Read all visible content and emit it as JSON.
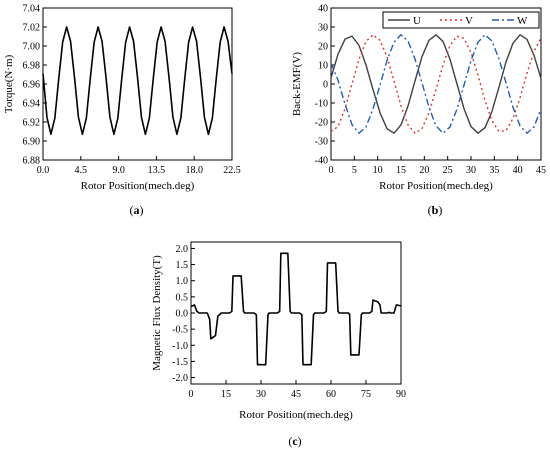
{
  "chart_data": [
    {
      "type": "line",
      "panel_label": "a",
      "xlabel": "Rotor Position(mech.deg)",
      "ylabel": "Torque(N·m)",
      "xlim": [
        0,
        22.5
      ],
      "ylim": [
        6.88,
        7.04
      ],
      "xticks": [
        "0.0",
        "4.5",
        "9.0",
        "13.5",
        "18.0",
        "22.5"
      ],
      "yticks": [
        "6.88",
        "6.90",
        "6.92",
        "6.94",
        "6.96",
        "6.98",
        "7.00",
        "7.02",
        "7.04"
      ],
      "grid": false,
      "series": [
        {
          "color": "#000000",
          "style": "solid",
          "x": [
            0.0,
            0.47,
            0.94,
            1.41,
            1.88,
            2.34,
            2.81,
            3.28,
            3.75,
            4.22,
            4.69,
            5.16,
            5.63,
            6.09,
            6.56,
            7.03,
            7.5,
            7.97,
            8.44,
            8.91,
            9.38,
            9.84,
            10.31,
            10.78,
            11.25,
            11.72,
            12.19,
            12.66,
            13.13,
            13.59,
            14.06,
            14.53,
            15.0,
            15.47,
            15.94,
            16.41,
            16.88,
            17.34,
            17.81,
            18.28,
            18.75,
            19.22,
            19.69,
            20.16,
            20.63,
            21.09,
            21.56,
            22.03,
            22.5
          ],
          "y": [
            6.971,
            6.925,
            6.907,
            6.924,
            6.966,
            7.004,
            7.02,
            7.005,
            6.967,
            6.925,
            6.907,
            6.924,
            6.966,
            7.004,
            7.02,
            7.005,
            6.967,
            6.925,
            6.907,
            6.924,
            6.966,
            7.004,
            7.02,
            7.005,
            6.967,
            6.925,
            6.907,
            6.924,
            6.966,
            7.004,
            7.02,
            7.005,
            6.967,
            6.925,
            6.907,
            6.924,
            6.966,
            7.004,
            7.02,
            7.005,
            6.967,
            6.925,
            6.907,
            6.924,
            6.966,
            7.004,
            7.02,
            7.005,
            6.971
          ]
        }
      ]
    },
    {
      "type": "line",
      "panel_label": "b",
      "xlabel": "Rotor Position(mech.deg)",
      "ylabel": "Back-EMF(V)",
      "xlim": [
        0,
        45
      ],
      "ylim": [
        -40,
        40
      ],
      "xticks": [
        "0",
        "5",
        "10",
        "15",
        "20",
        "25",
        "30",
        "35",
        "40",
        "45"
      ],
      "yticks": [
        "-40",
        "-30",
        "-20",
        "-10",
        "0",
        "10",
        "20",
        "30",
        "40"
      ],
      "grid": false,
      "legend": "top-right",
      "series": [
        {
          "name": "U",
          "color": "#404040",
          "style": "solid",
          "x": [
            0,
            1.5,
            3,
            4.5,
            6,
            7.5,
            9,
            10.5,
            12,
            13.5,
            15,
            16.5,
            18,
            19.5,
            21,
            22.5,
            24,
            25.5,
            27,
            28.5,
            30,
            31.5,
            33,
            34.5,
            36,
            37.5,
            39,
            40.5,
            42,
            43.5,
            45
          ],
          "y": [
            3.2,
            15.7,
            23.6,
            25.2,
            20.3,
            10.0,
            -2.9,
            -15.1,
            -23.5,
            -25.9,
            -21.5,
            -11.6,
            1.6,
            14.4,
            23.0,
            25.9,
            22.4,
            13.0,
            0.0,
            -13.0,
            -22.4,
            -25.9,
            -23.0,
            -14.4,
            -1.6,
            11.6,
            21.5,
            25.9,
            23.5,
            15.1,
            2.9
          ]
        },
        {
          "name": "V",
          "color": "#e03030",
          "style": "dotted",
          "x": [
            0,
            1.5,
            3,
            4.5,
            6,
            7.5,
            9,
            10.5,
            12,
            13.5,
            15,
            16.5,
            18,
            19.5,
            21,
            22.5,
            24,
            25.5,
            27,
            28.5,
            30,
            31.5,
            33,
            34.5,
            36,
            37.5,
            39,
            40.5,
            42,
            43.5,
            45
          ],
          "y": [
            -25.0,
            -22.4,
            -13.0,
            0.0,
            13.0,
            22.4,
            25.9,
            23.0,
            14.4,
            1.6,
            -11.6,
            -21.5,
            -25.9,
            -23.5,
            -15.1,
            -2.9,
            10.0,
            20.3,
            25.2,
            24.0,
            16.6,
            4.5,
            -8.6,
            -19.4,
            -25.0,
            -24.6,
            -18.1,
            -7.3,
            5.7,
            17.1,
            24.4
          ]
        },
        {
          "name": "W",
          "color": "#1f5fb0",
          "style": "dashdot",
          "x": [
            0,
            1.5,
            3,
            4.5,
            6,
            7.5,
            9,
            10.5,
            12,
            13.5,
            15,
            16.5,
            18,
            19.5,
            21,
            22.5,
            24,
            25.5,
            27,
            28.5,
            30,
            31.5,
            33,
            34.5,
            36,
            37.5,
            39,
            40.5,
            42,
            43.5,
            45
          ],
          "y": [
            11.0,
            2.0,
            -10.6,
            -21.4,
            -25.9,
            -22.6,
            -13.2,
            -0.6,
            12.3,
            22.0,
            25.9,
            22.6,
            13.2,
            0.6,
            -12.3,
            -22.0,
            -25.9,
            -22.6,
            -13.2,
            -0.6,
            12.3,
            22.0,
            25.9,
            22.6,
            13.2,
            0.6,
            -12.3,
            -22.0,
            -25.9,
            -22.6,
            -13.2
          ]
        }
      ]
    },
    {
      "type": "line",
      "panel_label": "c",
      "xlabel": "Rotor Position(mech.deg)",
      "ylabel": "Magnetic Flux Density(T)",
      "xlim": [
        0,
        90
      ],
      "ylim": [
        -2.2,
        2.2
      ],
      "xticks": [
        "0",
        "15",
        "30",
        "45",
        "60",
        "75",
        "90"
      ],
      "yticks": [
        "2.0",
        "1.5",
        "1.0",
        "0.5",
        "0.0",
        "-0.5",
        "-1.0",
        "-1.5",
        "-2.0"
      ],
      "grid": false,
      "series": [
        {
          "color": "#000000",
          "style": "solid",
          "x": [
            0,
            1.5,
            2.5,
            3.5,
            7,
            8,
            8.5,
            10.5,
            11.5,
            13,
            16.5,
            17.5,
            18,
            21.5,
            22.5,
            23,
            27,
            28,
            28.5,
            32,
            33,
            33.5,
            37,
            38,
            38.5,
            41.5,
            42.5,
            43,
            46.5,
            47.5,
            48,
            51.5,
            52.5,
            53,
            57,
            58,
            58.5,
            62,
            63,
            63.5,
            67.5,
            68,
            68.5,
            72,
            73,
            73.5,
            76.5,
            77.5,
            78,
            80,
            81,
            81.5,
            84,
            85,
            85.5,
            87,
            88,
            90
          ],
          "y": [
            0.2,
            0.25,
            0.05,
            0.0,
            0.0,
            -0.2,
            -0.8,
            -0.7,
            -0.1,
            0.0,
            0.0,
            0.05,
            1.15,
            1.15,
            0.05,
            0.0,
            0.0,
            -0.05,
            -1.6,
            -1.6,
            -0.05,
            0.0,
            0.0,
            0.05,
            1.85,
            1.85,
            0.05,
            0.0,
            0.0,
            -0.05,
            -1.6,
            -1.6,
            -0.05,
            0.0,
            0.0,
            0.05,
            1.55,
            1.55,
            0.05,
            0.0,
            0.0,
            -0.05,
            -1.3,
            -1.3,
            -0.05,
            0.0,
            0.0,
            0.05,
            0.4,
            0.35,
            0.25,
            0.0,
            0.0,
            0.02,
            0.0,
            0.0,
            0.25,
            0.22
          ]
        }
      ]
    }
  ]
}
